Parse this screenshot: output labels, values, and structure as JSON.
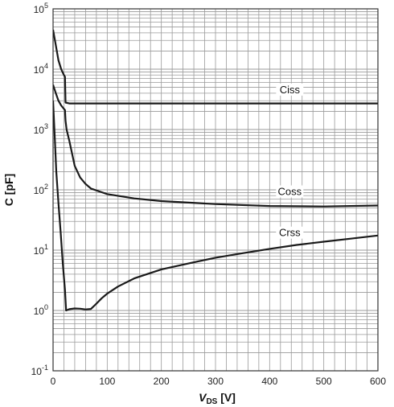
{
  "chart_data": {
    "type": "line",
    "xlabel_main": "V",
    "xlabel_sub": "DS",
    "xlabel_unit": " [V]",
    "ylabel": "C [pF]",
    "xlim": [
      0,
      600
    ],
    "ylim": [
      0.1,
      100000
    ],
    "y_scale": "log",
    "grid": true,
    "x_ticks": [
      0,
      100,
      200,
      300,
      400,
      500,
      600
    ],
    "y_ticks": [
      {
        "value": 0.1,
        "base": "10",
        "exp": "-1"
      },
      {
        "value": 1,
        "base": "10",
        "exp": "0"
      },
      {
        "value": 10,
        "base": "10",
        "exp": "1"
      },
      {
        "value": 100,
        "base": "10",
        "exp": "2"
      },
      {
        "value": 1000,
        "base": "10",
        "exp": "3"
      },
      {
        "value": 10000,
        "base": "10",
        "exp": "4"
      },
      {
        "value": 100000,
        "base": "10",
        "exp": "5"
      }
    ],
    "series": [
      {
        "name": "Ciss",
        "color": "#1a1a1a",
        "label_at": [
          400,
          4000
        ],
        "points": [
          [
            0,
            45000
          ],
          [
            5,
            25000
          ],
          [
            10,
            14000
          ],
          [
            15,
            10000
          ],
          [
            20,
            8000
          ],
          [
            22,
            7500
          ],
          [
            23,
            2800
          ],
          [
            30,
            2700
          ],
          [
            100,
            2700
          ],
          [
            200,
            2700
          ],
          [
            300,
            2700
          ],
          [
            400,
            2700
          ],
          [
            500,
            2700
          ],
          [
            600,
            2700
          ]
        ]
      },
      {
        "name": "Coss",
        "color": "#1a1a1a",
        "label_at": [
          400,
          82
        ],
        "points": [
          [
            0,
            5500
          ],
          [
            5,
            4000
          ],
          [
            10,
            3000
          ],
          [
            15,
            2500
          ],
          [
            20,
            2200
          ],
          [
            22,
            2100
          ],
          [
            23,
            1400
          ],
          [
            25,
            1000
          ],
          [
            30,
            650
          ],
          [
            35,
            400
          ],
          [
            40,
            250
          ],
          [
            50,
            160
          ],
          [
            60,
            125
          ],
          [
            70,
            105
          ],
          [
            100,
            85
          ],
          [
            150,
            72
          ],
          [
            200,
            65
          ],
          [
            300,
            58
          ],
          [
            400,
            54
          ],
          [
            500,
            53
          ],
          [
            600,
            55
          ]
        ]
      },
      {
        "name": "Crss",
        "color": "#1a1a1a",
        "label_at": [
          400,
          17
        ],
        "points": [
          [
            0,
            3000
          ],
          [
            3,
            800
          ],
          [
            6,
            200
          ],
          [
            10,
            60
          ],
          [
            14,
            20
          ],
          [
            18,
            6
          ],
          [
            22,
            2.2
          ],
          [
            24,
            1.0
          ],
          [
            30,
            1.05
          ],
          [
            40,
            1.08
          ],
          [
            50,
            1.07
          ],
          [
            60,
            1.04
          ],
          [
            70,
            1.06
          ],
          [
            80,
            1.3
          ],
          [
            90,
            1.6
          ],
          [
            100,
            1.9
          ],
          [
            120,
            2.5
          ],
          [
            150,
            3.4
          ],
          [
            200,
            4.8
          ],
          [
            250,
            6.0
          ],
          [
            300,
            7.5
          ],
          [
            350,
            8.9
          ],
          [
            400,
            10.5
          ],
          [
            450,
            12.2
          ],
          [
            500,
            13.8
          ],
          [
            550,
            15.5
          ],
          [
            600,
            17.5
          ]
        ]
      }
    ]
  }
}
